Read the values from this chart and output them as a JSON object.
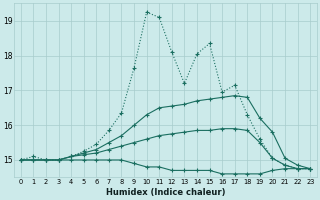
{
  "xlabel": "Humidex (Indice chaleur)",
  "bg_color": "#cceaea",
  "grid_color": "#a8cccc",
  "line_color": "#1a6e60",
  "xlim": [
    -0.5,
    23.5
  ],
  "ylim": [
    14.5,
    19.5
  ],
  "yticks": [
    15,
    16,
    17,
    18,
    19
  ],
  "xticks": [
    0,
    1,
    2,
    3,
    4,
    5,
    6,
    7,
    8,
    9,
    10,
    11,
    12,
    13,
    14,
    15,
    16,
    17,
    18,
    19,
    20,
    21,
    22,
    23
  ],
  "series": [
    {
      "y": [
        15.0,
        15.0,
        15.0,
        15.0,
        15.0,
        15.0,
        15.0,
        15.0,
        15.0,
        14.9,
        14.8,
        14.8,
        14.7,
        14.7,
        14.7,
        14.7,
        14.6,
        14.6,
        14.6,
        14.6,
        14.7,
        14.75,
        14.75,
        14.75
      ],
      "linestyle": "-",
      "marker": true
    },
    {
      "y": [
        15.0,
        15.0,
        15.0,
        15.0,
        15.1,
        15.15,
        15.2,
        15.3,
        15.4,
        15.5,
        15.6,
        15.7,
        15.75,
        15.8,
        15.85,
        15.85,
        15.9,
        15.9,
        15.85,
        15.5,
        15.05,
        14.85,
        14.75,
        14.75
      ],
      "linestyle": "-",
      "marker": true
    },
    {
      "y": [
        15.0,
        15.0,
        15.0,
        15.0,
        15.1,
        15.2,
        15.3,
        15.5,
        15.7,
        16.0,
        16.3,
        16.5,
        16.55,
        16.6,
        16.7,
        16.75,
        16.8,
        16.85,
        16.8,
        16.2,
        15.8,
        15.05,
        14.85,
        14.75
      ],
      "linestyle": "-",
      "marker": true
    },
    {
      "y": [
        15.0,
        15.1,
        15.0,
        15.0,
        15.1,
        15.25,
        15.45,
        15.85,
        16.35,
        17.65,
        19.25,
        19.1,
        18.1,
        17.2,
        18.05,
        18.35,
        16.95,
        17.15,
        16.3,
        15.6,
        15.05,
        14.85,
        14.75,
        14.75
      ],
      "linestyle": ":",
      "marker": true
    }
  ]
}
